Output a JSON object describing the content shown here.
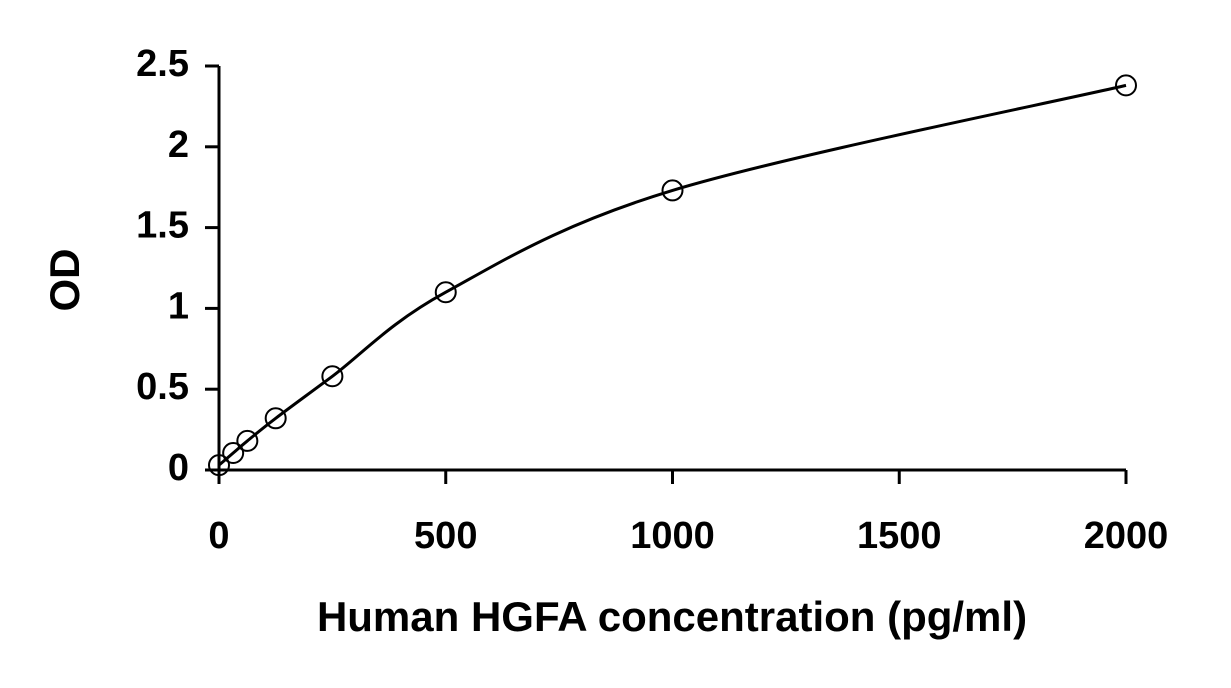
{
  "chart_data": {
    "type": "scatter",
    "x_label": "Human HGFA concentration (pg/ml)",
    "y_label": "OD",
    "x": [
      0,
      31.25,
      62.5,
      125,
      250,
      500,
      1000,
      2000
    ],
    "values": [
      0.03,
      0.105,
      0.18,
      0.32,
      0.58,
      1.1,
      1.73,
      2.38
    ],
    "color": "#000000",
    "line": true,
    "xlim": [
      0,
      2000
    ],
    "xticks": [
      0,
      500,
      1000,
      1500,
      2000
    ],
    "ylim": [
      0,
      2.5
    ],
    "yticks": [
      0,
      0.5,
      1,
      1.5,
      2,
      2.5
    ],
    "grid": false
  }
}
